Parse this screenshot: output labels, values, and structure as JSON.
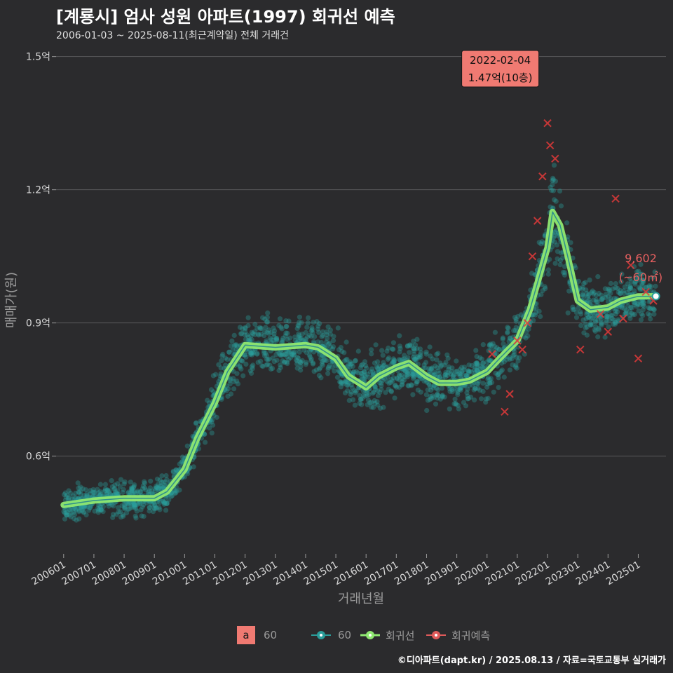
{
  "title": "[계룡시] 엄사 성원 아파트(1997) 회귀선 예측",
  "subtitle": "2006-01-03 ~ 2025-08-11(최근계약일) 전체 거래건",
  "caption": "©디아파트(dapt.kr) / 2025.08.13 / 자료=국토교통부 실거래가",
  "colors": {
    "background": "#2b2b2d",
    "scatter": "#2a9d9a",
    "regression": "#8fe871",
    "prediction": "#e05a5a",
    "peak_box": "#f07a72"
  },
  "legend": {
    "area_key": "a",
    "area_label": "60",
    "scatter_label": "60",
    "regression_label": "회귀선",
    "prediction_label": "회귀예측"
  },
  "chart_data": {
    "type": "scatter",
    "xlabel": "거래년월",
    "ylabel": "매매가(원)",
    "x_ticks": [
      "200601",
      "200701",
      "200801",
      "200901",
      "201001",
      "201101",
      "201201",
      "201301",
      "201401",
      "201501",
      "201601",
      "201701",
      "201801",
      "201901",
      "202001",
      "202101",
      "202201",
      "202301",
      "202401",
      "202501"
    ],
    "y_ticks": [
      "0.6억",
      "0.9억",
      "1.2억",
      "1.5억"
    ],
    "y_tick_values": [
      0.6,
      0.9,
      1.2,
      1.5
    ],
    "ylim": [
      0.38,
      1.52
    ],
    "xlim": [
      "2005-10",
      "2025-12"
    ],
    "peak_annotation": {
      "date": "2022-02-04",
      "value_label": "1.47억(10층)",
      "x": "2022-02",
      "y": 1.47
    },
    "last_annotation": {
      "value_label": "9,602",
      "area_label": "(~60㎡)",
      "x": "2025-08",
      "y": 0.9602
    },
    "series": [
      {
        "name": "회귀선",
        "x": [
          "2006-01",
          "2007-01",
          "2008-01",
          "2009-01",
          "2009-06",
          "2010-01",
          "2010-06",
          "2011-01",
          "2011-06",
          "2012-01",
          "2013-01",
          "2014-01",
          "2014-06",
          "2015-01",
          "2015-06",
          "2016-01",
          "2016-06",
          "2017-01",
          "2017-06",
          "2018-01",
          "2018-06",
          "2019-01",
          "2019-06",
          "2020-01",
          "2020-06",
          "2021-01",
          "2021-06",
          "2022-01",
          "2022-03",
          "2022-06",
          "2022-09",
          "2023-01",
          "2023-06",
          "2024-01",
          "2024-06",
          "2025-01",
          "2025-08"
        ],
        "values": [
          0.49,
          0.5,
          0.505,
          0.505,
          0.52,
          0.57,
          0.64,
          0.72,
          0.79,
          0.85,
          0.845,
          0.85,
          0.845,
          0.82,
          0.78,
          0.755,
          0.78,
          0.8,
          0.81,
          0.78,
          0.765,
          0.765,
          0.77,
          0.79,
          0.82,
          0.86,
          0.93,
          1.07,
          1.15,
          1.12,
          1.05,
          0.95,
          0.93,
          0.935,
          0.95,
          0.96,
          0.9602
        ]
      },
      {
        "name": "회귀예측",
        "x": [
          "2020-03",
          "2020-08",
          "2020-10",
          "2021-01",
          "2021-03",
          "2021-05",
          "2021-07",
          "2021-09",
          "2021-11",
          "2022-01",
          "2022-02",
          "2022-04",
          "2023-02",
          "2023-10",
          "2024-01",
          "2024-04",
          "2024-07",
          "2024-10",
          "2025-01",
          "2025-04",
          "2025-07"
        ],
        "values": [
          0.83,
          0.7,
          0.74,
          0.86,
          0.84,
          0.9,
          1.05,
          1.13,
          1.23,
          1.35,
          1.3,
          1.27,
          0.84,
          0.92,
          0.88,
          1.18,
          0.91,
          1.03,
          0.82,
          0.97,
          0.95
        ]
      }
    ]
  }
}
